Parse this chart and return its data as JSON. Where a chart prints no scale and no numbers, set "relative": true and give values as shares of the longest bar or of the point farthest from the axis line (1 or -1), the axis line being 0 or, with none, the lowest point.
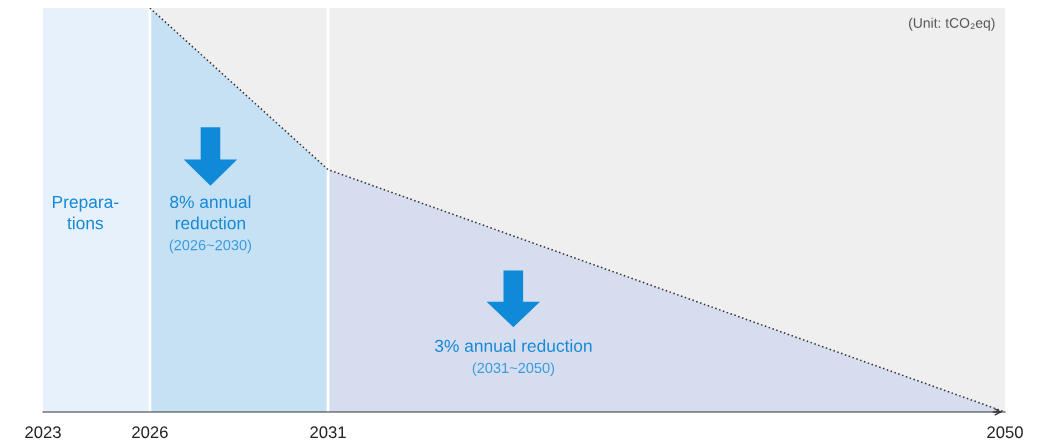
{
  "chart_data": {
    "type": "area",
    "relative": true,
    "xlim": [
      2023,
      2050
    ],
    "xticks": [
      2023,
      2026,
      2031,
      2050
    ],
    "series": [
      {
        "x": [
          2023,
          2026
        ],
        "values": [
          1,
          1
        ],
        "color": "#e6f1fb"
      },
      {
        "x": [
          2026,
          2031
        ],
        "values": [
          1,
          0.6
        ],
        "color": "#c6e1f4"
      },
      {
        "x": [
          2031,
          2050
        ],
        "values": [
          0.6,
          0
        ],
        "color": "#d5ddef"
      },
      {
        "type": "line",
        "x": [
          2026,
          2031,
          2050
        ],
        "values": [
          1,
          0.6,
          0
        ],
        "color": "#333333",
        "line_style": "dotted"
      }
    ],
    "ref_lines": [
      {
        "axis": "x",
        "value": 2026,
        "color": "#ffffff"
      },
      {
        "axis": "x",
        "value": 2031,
        "color": "#ffffff"
      }
    ],
    "annotations": [
      "Prepara-\ntions",
      "8% annual\nreduction",
      "(2026~2030)",
      "3% annual reduction",
      "(2031~2050)",
      "(Unit: tCO₂eq)"
    ],
    "grid": false,
    "legend": false
  }
}
